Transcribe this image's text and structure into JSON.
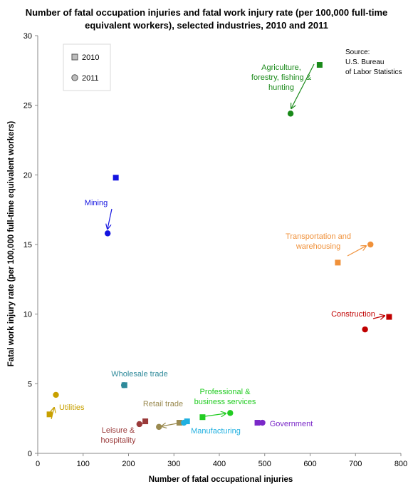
{
  "chart_data": {
    "type": "scatter",
    "title_lines": [
      "Number of fatal occupation injuries and fatal work injury rate (per 100,000 full-time",
      "equivalent workers), selected industries, 2010 and 2011"
    ],
    "xlabel": "Number of fatal occupational injuries",
    "ylabel": "Fatal work injury rate (per 100,000 full-time equivalent workers)",
    "xlim": [
      0,
      800
    ],
    "ylim": [
      0,
      30
    ],
    "x_ticks": [
      "0",
      "100",
      "200",
      "300",
      "400",
      "500",
      "600",
      "700",
      "800"
    ],
    "y_ticks": [
      "0",
      "5",
      "10",
      "15",
      "20",
      "25",
      "30"
    ],
    "grid": false,
    "legend": {
      "placement": "top-left",
      "entries": [
        {
          "label": "2010",
          "marker": "square"
        },
        {
          "label": "2011",
          "marker": "circle"
        }
      ]
    },
    "source_lines": [
      "Source:",
      "U.S. Bureau",
      "of Labor Statistics"
    ],
    "industries": [
      {
        "key": "agriculture",
        "label_lines": [
          "Agriculture,",
          "forestry, fishing &",
          "hunting"
        ],
        "color": "#1a8a1a",
        "y2010": {
          "x": 621,
          "y": 27.9
        },
        "y2011": {
          "x": 557,
          "y": 24.4
        },
        "arrow": true
      },
      {
        "key": "mining",
        "label_lines": [
          "Mining"
        ],
        "color": "#1414e0",
        "y2010": {
          "x": 172,
          "y": 19.8
        },
        "y2011": {
          "x": 154,
          "y": 15.8
        },
        "arrow": true
      },
      {
        "key": "transportation",
        "label_lines": [
          "Transportation and",
          "warehousing"
        ],
        "color": "#f0913a",
        "y2010": {
          "x": 661,
          "y": 13.7
        },
        "y2011": {
          "x": 733,
          "y": 15.0
        },
        "arrow": true
      },
      {
        "key": "construction",
        "label_lines": [
          "Construction"
        ],
        "color": "#c00000",
        "y2010": {
          "x": 774,
          "y": 9.8
        },
        "y2011": {
          "x": 721,
          "y": 8.9
        },
        "arrow": true
      },
      {
        "key": "wholesale",
        "label_lines": [
          "Wholesale trade"
        ],
        "color": "#2e8a9a",
        "y2010": {
          "x": 191,
          "y": 4.9
        },
        "y2011": {
          "x": 190,
          "y": 4.9
        },
        "arrow": false
      },
      {
        "key": "utilities",
        "label_lines": [
          "Utilities"
        ],
        "color": "#c8a000",
        "y2010": {
          "x": 26,
          "y": 2.8
        },
        "y2011": {
          "x": 40,
          "y": 4.2
        },
        "arrow": true
      },
      {
        "key": "retail",
        "label_lines": [
          "Retail trade"
        ],
        "color": "#9a8a50",
        "y2010": {
          "x": 312,
          "y": 2.2
        },
        "y2011": {
          "x": 267,
          "y": 1.9
        },
        "arrow": true
      },
      {
        "key": "leisure",
        "label_lines": [
          "Leisure &",
          "hospitality"
        ],
        "color": "#9a3a3a",
        "y2010": {
          "x": 237,
          "y": 2.3
        },
        "y2011": {
          "x": 224,
          "y": 2.1
        },
        "arrow": false
      },
      {
        "key": "manufacturing",
        "label_lines": [
          "Manufacturing"
        ],
        "color": "#20b0e0",
        "y2010": {
          "x": 329,
          "y": 2.3
        },
        "y2011": {
          "x": 322,
          "y": 2.2
        },
        "arrow": false
      },
      {
        "key": "professional",
        "label_lines": [
          "Professional &",
          "business services"
        ],
        "color": "#22cc22",
        "y2010": {
          "x": 363,
          "y": 2.6
        },
        "y2011": {
          "x": 424,
          "y": 2.9
        },
        "arrow": true
      },
      {
        "key": "government",
        "label_lines": [
          "Government"
        ],
        "color": "#7a28c8",
        "y2010": {
          "x": 484,
          "y": 2.2
        },
        "y2011": {
          "x": 495,
          "y": 2.2
        },
        "arrow": false
      }
    ]
  }
}
